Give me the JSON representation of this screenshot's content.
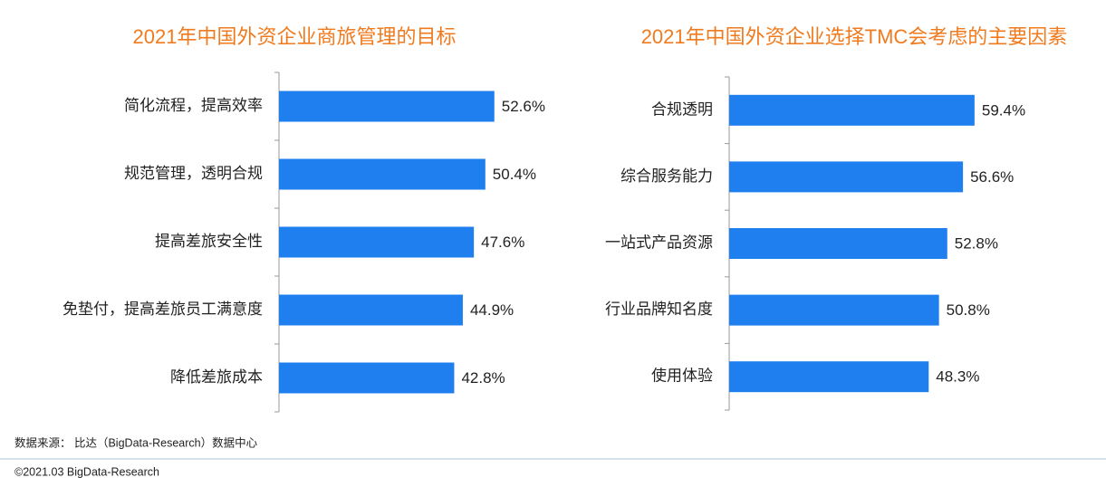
{
  "chart_data": [
    {
      "type": "barh",
      "title": "2021年中国外资企业商旅管理的目标",
      "categories": [
        "简化流程，提高效率",
        "规范管理，透明合规",
        "提高差旅安全性",
        "免垫付，提高差旅员工满意度",
        "降低差旅成本"
      ],
      "values": [
        52.6,
        50.4,
        47.6,
        44.9,
        42.8
      ],
      "value_labels": [
        "52.6%",
        "50.4%",
        "47.6%",
        "44.9%",
        "42.8%"
      ],
      "color": "#1f7fee"
    },
    {
      "type": "barh",
      "title": "2021年中国外资企业选择TMC会考虑的主要因素",
      "categories": [
        "合规透明",
        "综合服务能力",
        "一站式产品资源",
        "行业品牌知名度",
        "使用体验"
      ],
      "values": [
        59.4,
        56.6,
        52.8,
        50.8,
        48.3
      ],
      "value_labels": [
        "59.4%",
        "56.6%",
        "52.8%",
        "50.8%",
        "48.3%"
      ],
      "color": "#1f7fee"
    }
  ],
  "source": "数据来源： 比达（BigData-Research）数据中心",
  "copyright": "©2021.03 BigData-Research"
}
